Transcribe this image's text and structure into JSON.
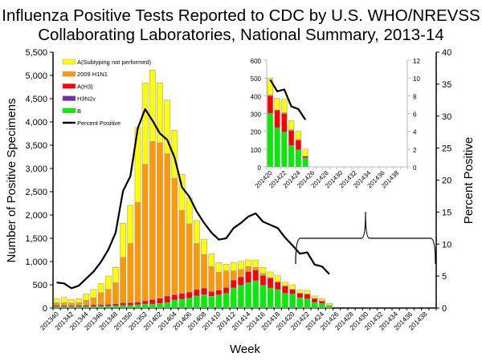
{
  "chart_data": {
    "type": "bar",
    "title": [
      "Influenza Positive Tests Reported to CDC by U.S. WHO/NREVSS",
      "Collaborating Laboratories, National Summary, 2013-14"
    ],
    "xlabel": "Week",
    "ylabel": "Number of Positive Specimens",
    "y2label": "Percent Positive",
    "ylim": [
      0,
      5500
    ],
    "y2lim": [
      0,
      40
    ],
    "yticks": [
      "0",
      "500",
      "1,000",
      "1,500",
      "2,000",
      "2,500",
      "3,000",
      "3,500",
      "4,000",
      "4,500",
      "5,000",
      "5,500"
    ],
    "y2ticks": [
      "0",
      "5",
      "10",
      "15",
      "20",
      "25",
      "30",
      "35",
      "40"
    ],
    "weeks": [
      "201340",
      "201341",
      "201342",
      "201343",
      "201344",
      "201345",
      "201346",
      "201347",
      "201348",
      "201349",
      "201350",
      "201351",
      "201352",
      "201401",
      "201402",
      "201403",
      "201404",
      "201405",
      "201406",
      "201407",
      "201408",
      "201409",
      "201410",
      "201411",
      "201412",
      "201413",
      "201414",
      "201415",
      "201416",
      "201417",
      "201418",
      "201419",
      "201420",
      "201421",
      "201422",
      "201423",
      "201424",
      "201425",
      "201426",
      "201427",
      "201428",
      "201429",
      "201430",
      "201431",
      "201432",
      "201433",
      "201434",
      "201435",
      "201436",
      "201437",
      "201438",
      "201439"
    ],
    "xticklabels": [
      "201340",
      "201342",
      "201344",
      "201346",
      "201348",
      "201350",
      "201352",
      "201402",
      "201404",
      "201406",
      "201408",
      "201410",
      "201412",
      "201414",
      "201416",
      "201418",
      "201420",
      "201422",
      "201424",
      "201426",
      "201428",
      "201430",
      "201432",
      "201434",
      "201436",
      "201438"
    ],
    "legend": [
      {
        "name": "A(Subtyping not performed)",
        "color": "#ffff00"
      },
      {
        "name": "2009 H1N1",
        "color": "#ff9900"
      },
      {
        "name": "A(H3)",
        "color": "#ff0000"
      },
      {
        "name": "H3N2v",
        "color": "#7030a0"
      },
      {
        "name": "B",
        "color": "#00ee00"
      },
      {
        "name": "Percent Positive",
        "color": "#000000"
      }
    ],
    "legend_position": "top-left",
    "series": [
      {
        "name": "B",
        "values": [
          30,
          30,
          30,
          30,
          30,
          30,
          40,
          40,
          45,
          57,
          57,
          69,
          86,
          86,
          98,
          115,
          172,
          190,
          213,
          260,
          287,
          253,
          282,
          316,
          431,
          488,
          546,
          586,
          488,
          431,
          397,
          316,
          300,
          220,
          195,
          120,
          95,
          50
        ]
      },
      {
        "name": "A(H3)",
        "values": [
          27,
          27,
          25,
          30,
          30,
          40,
          35,
          40,
          45,
          58,
          58,
          57,
          69,
          98,
          115,
          145,
          115,
          126,
          132,
          140,
          143,
          103,
          103,
          127,
          172,
          184,
          241,
          230,
          213,
          213,
          160,
          155,
          100,
          100,
          105,
          85,
          55,
          10
        ]
      },
      {
        "name": "H3N2v",
        "values": [
          0,
          0,
          0,
          0,
          0,
          0,
          0,
          0,
          0,
          0,
          0,
          0,
          0,
          0,
          0,
          0,
          0,
          0,
          0,
          0,
          0,
          0,
          0,
          0,
          0,
          0,
          0,
          0,
          0,
          0,
          0,
          0,
          0,
          0,
          0,
          0,
          0,
          0
        ]
      },
      {
        "name": "2009 H1N1",
        "values": [
          58,
          58,
          50,
          55,
          105,
          150,
          255,
          320,
          455,
          975,
          1275,
          2144,
          2935,
          3396,
          3337,
          3055,
          2503,
          1784,
          1465,
          990,
          720,
          535,
          385,
          356,
          196,
          156,
          104,
          58,
          46,
          17,
          12,
          12,
          5,
          0,
          5,
          5,
          5,
          0
        ]
      },
      {
        "name": "A(Subtyping not performed)",
        "values": [
          85,
          115,
          80,
          85,
          140,
          180,
          200,
          290,
          330,
          730,
          820,
          1610,
          1750,
          1535,
          1290,
          1155,
          1030,
          770,
          560,
          490,
          330,
          270,
          207,
          144,
          178,
          177,
          143,
          160,
          127,
          115,
          126,
          74,
          95,
          65,
          75,
          50,
          45,
          40
        ]
      },
      {
        "name": "Percent Positive",
        "axis": "right",
        "values": [
          4.0,
          3.85,
          3.1,
          3.5,
          4.6,
          5.7,
          7.2,
          9.1,
          11.8,
          18.3,
          20.6,
          28.1,
          31.1,
          29.3,
          27.3,
          26.3,
          23.5,
          18.9,
          17.4,
          15.1,
          13.3,
          11.8,
          10.7,
          10.9,
          12.5,
          13.3,
          14.3,
          14.8,
          13.5,
          13.0,
          12.5,
          11.0,
          9.8,
          8.5,
          8.7,
          6.8,
          6.5,
          5.3
        ]
      }
    ],
    "inset": {
      "ylim": [
        0,
        600
      ],
      "y2lim": [
        0,
        12
      ],
      "yticks": [
        "0",
        "100",
        "200",
        "300",
        "400",
        "500",
        "600"
      ],
      "y2ticks": [
        "0",
        "2",
        "4",
        "6",
        "8",
        "10",
        "12"
      ],
      "xticklabels": [
        "201420",
        "201422",
        "201424",
        "201426",
        "201428",
        "201430",
        "201432",
        "201434",
        "201436",
        "201438"
      ],
      "weeks": [
        "201420",
        "201421",
        "201422",
        "201423",
        "201424",
        "201425"
      ],
      "B": [
        300,
        220,
        195,
        120,
        95,
        50
      ],
      "A(H3)": [
        100,
        100,
        105,
        85,
        55,
        10
      ],
      "2009 H1N1": [
        5,
        0,
        5,
        5,
        5,
        0
      ],
      "A(Subtyping not performed)": [
        95,
        65,
        75,
        50,
        45,
        40
      ],
      "Percent Positive": [
        9.8,
        8.5,
        8.7,
        6.8,
        6.5,
        5.3
      ]
    }
  }
}
